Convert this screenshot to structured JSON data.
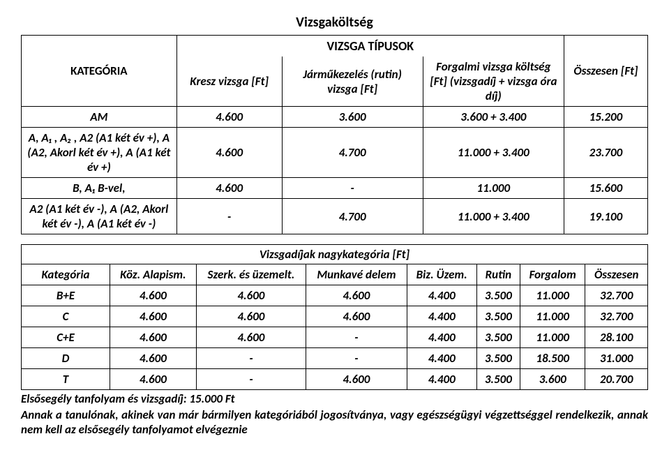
{
  "document": {
    "title": "Vizsgaköltség",
    "table1": {
      "headers": {
        "kategoria": "KATEGÓRIA",
        "tipusok": "VIZSGA TÍPUSOK",
        "kresz": "Kresz vizsga [Ft]",
        "jarmu": "Járműkezelés (rutin) vizsga [Ft]",
        "forgalmi": "Forgalmi vizsga költség [Ft] (vizsgadíj + vizsga óra díj)",
        "osszesen": "Összesen [Ft]"
      },
      "rows": [
        {
          "label": "AM",
          "kresz": "4.600",
          "jarmu": "3.600",
          "forgalmi": "3.600 + 3.400",
          "ossz": "15.200"
        },
        {
          "label": "A, A₁ , A₂ , A2 (A1 két év +), A (A2, Akorl két év +), A (A1 két év +)",
          "kresz": "4.600",
          "jarmu": "4.700",
          "forgalmi": "11.000 + 3.400",
          "ossz": "23.700"
        },
        {
          "label": "B, A₁ B-vel,",
          "kresz": "4.600",
          "jarmu": "-",
          "forgalmi": "11.000",
          "ossz": "15.600"
        },
        {
          "label": "A2 (A1 két év -),  A (A2, Akorl két év -),     A (A1 két év -)",
          "kresz": "-",
          "jarmu": "4.700",
          "forgalmi": "11.000 + 3.400",
          "ossz": "19.100"
        }
      ]
    },
    "table2": {
      "title": "Vizsgadíjak nagykategória [Ft]",
      "headers": {
        "kategoria": "Kategória",
        "koz": "Köz. Alapism.",
        "szerk": "Szerk. és üzemelt.",
        "munka": "Munkavé delem",
        "biz": "Biz. Üzem.",
        "rutin": "Rutin",
        "forgalom": "Forgalom",
        "osszesen": "Összesen"
      },
      "rows": [
        {
          "label": "B+E",
          "koz": "4.600",
          "szerk": "4.600",
          "munka": "4.600",
          "biz": "4.400",
          "rutin": "3.500",
          "forg": "11.000",
          "ossz": "32.700"
        },
        {
          "label": "C",
          "koz": "4.600",
          "szerk": "4.600",
          "munka": "4.600",
          "biz": "4.400",
          "rutin": "3.500",
          "forg": "11.000",
          "ossz": "32.700"
        },
        {
          "label": "C+E",
          "koz": "4.600",
          "szerk": "4.600",
          "munka": "-",
          "biz": "4.400",
          "rutin": "3.500",
          "forg": "11.000",
          "ossz": "28.100"
        },
        {
          "label": "D",
          "koz": "4.600",
          "szerk": "-",
          "munka": "-",
          "biz": "4.400",
          "rutin": "3.500",
          "forg": "18.500",
          "ossz": "31.000"
        },
        {
          "label": "T",
          "koz": "4.600",
          "szerk": "-",
          "munka": "4.600",
          "biz": "4.400",
          "rutin": "3.500",
          "forg": "3.600",
          "ossz": "20.700"
        }
      ]
    },
    "footer": {
      "line1": "Elsősegély tanfolyam és vizsgadíj: 15.000 Ft",
      "line2": "Annak a tanulónak, akinek van már bármilyen kategóriából jogosítványa, vagy egészségügyi végzettséggel rendelkezik, annak nem kell az elsősegély tanfolyamot elvégeznie"
    }
  }
}
